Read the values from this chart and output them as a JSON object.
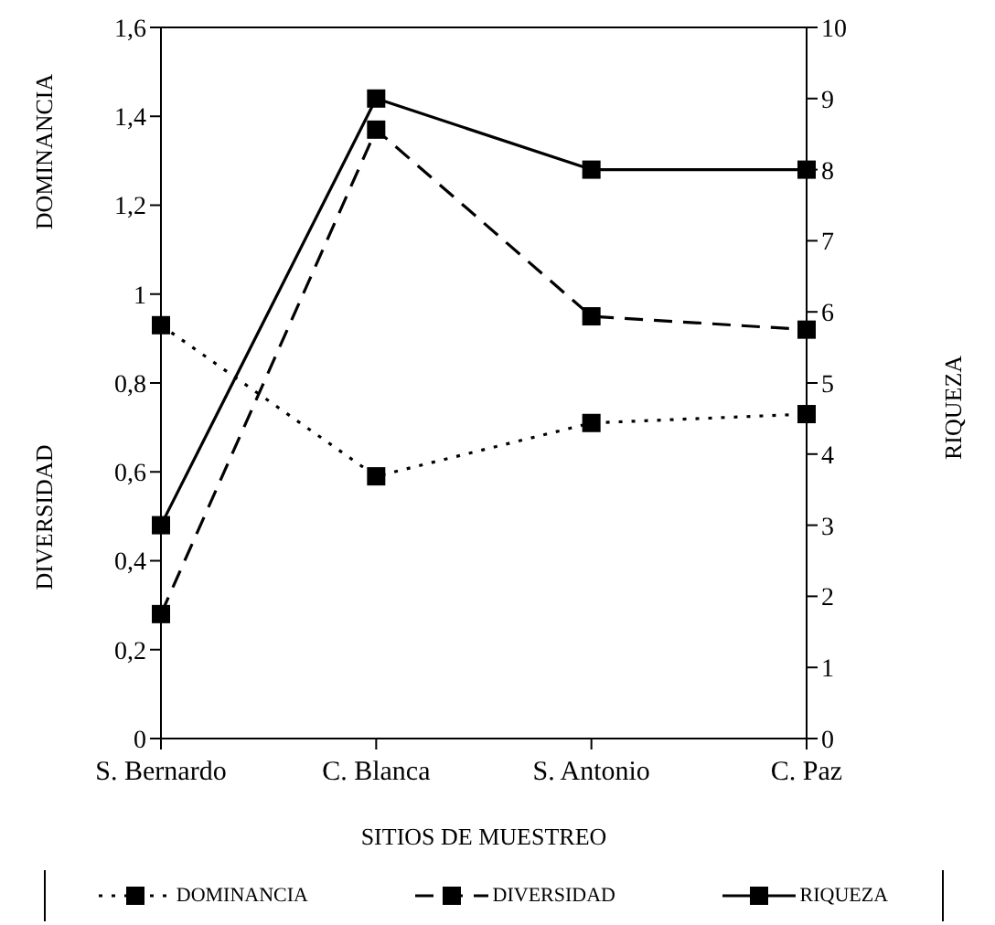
{
  "chart_data": {
    "type": "line",
    "xlabel": "SITIOS DE MUESTREO",
    "ylabel": "DOMINANCIA",
    "y2label": "RIQUEZA",
    "annotations": [
      "DIVERSIDAD"
    ],
    "categories": [
      "S. Bernardo",
      "C. Blanca",
      "S. Antonio",
      "C. Paz"
    ],
    "series": [
      {
        "name": "DOMINANCIA",
        "color": "#000000",
        "values": [
          0.93,
          0.59,
          0.71,
          0.73
        ],
        "line_style": "dotted"
      },
      {
        "name": "DIVERSIDAD",
        "color": "#000000",
        "values": [
          0.28,
          1.37,
          0.95,
          0.92
        ],
        "line_style": "dashed"
      },
      {
        "name": "RIQUEZA",
        "color": "#000000",
        "values": [
          3,
          9,
          8,
          8
        ],
        "line_style": "solid",
        "axis": "y2"
      }
    ],
    "ylim": [
      0,
      1.6
    ],
    "yticks": [
      0,
      {
        "value": 0.2,
        "label": "0,2"
      },
      {
        "value": 0.4,
        "label": "0,4"
      },
      {
        "value": 0.6,
        "label": "0,6"
      },
      {
        "value": 0.8,
        "label": "0,8"
      },
      1,
      {
        "value": 1.2,
        "label": "1,2"
      },
      {
        "value": 1.4,
        "label": "1,4"
      },
      {
        "value": 1.6,
        "label": "1,6"
      }
    ],
    "y2lim": [
      0,
      10
    ],
    "y2ticks": [
      0,
      1,
      2,
      3,
      4,
      5,
      6,
      7,
      8,
      9,
      10
    ],
    "marker": "square",
    "legend": "bottom"
  }
}
